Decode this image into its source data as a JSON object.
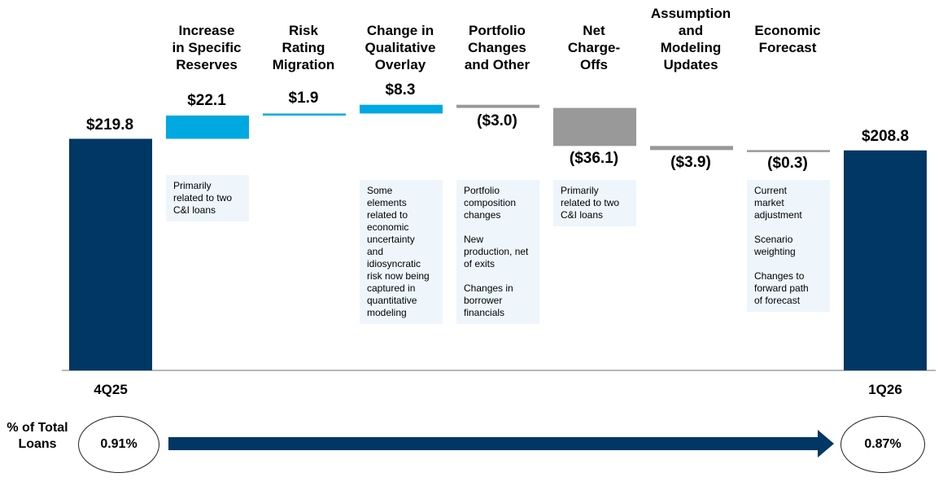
{
  "chart_data": {
    "type": "waterfall",
    "start": {
      "label": "4Q25",
      "value": 219.8,
      "value_label": "$219.8"
    },
    "end": {
      "label": "1Q26",
      "value": 208.8,
      "value_label": "$208.8"
    },
    "steps": [
      {
        "header": "Increase\nin Specific\nReserves",
        "value": 22.1,
        "value_label": "$22.1",
        "note": "Primarily\nrelated to two\nC&I loans"
      },
      {
        "header": "Risk\nRating\nMigration",
        "value": 1.9,
        "value_label": "$1.9",
        "note": ""
      },
      {
        "header": "Change in\nQualitative\nOverlay",
        "value": 8.3,
        "value_label": "$8.3",
        "note": "Some\nelements\nrelated to\neconomic\nuncertainty\nand\nidiosyncratic\nrisk now being\ncaptured in\nquantitative\nmodeling"
      },
      {
        "header": "Portfolio\nChanges\nand Other",
        "value": -3.0,
        "value_label": "($3.0)",
        "note": "Portfolio\ncomposition\nchanges\n\nNew\nproduction, net\nof exits\n\nChanges in\nborrower\nfinancials"
      },
      {
        "header": "Net\nCharge-\nOffs",
        "value": -36.1,
        "value_label": "($36.1)",
        "note": "Primarily\nrelated to two\nC&I loans"
      },
      {
        "header": "Assumption\nand\nModeling\nUpdates",
        "value": -3.9,
        "value_label": "($3.9)",
        "note": ""
      },
      {
        "header": "Economic\nForecast",
        "value": -0.3,
        "value_label": "($0.3)",
        "note": "Current\nmarket\nadjustment\n\nScenario\nweighting\n\nChanges to\nforward path\nof forecast"
      }
    ],
    "colors": {
      "total": "#003764",
      "increase": "#00a8e1",
      "decrease": "#999999"
    }
  },
  "pct_row": {
    "label": "% of Total\nLoans",
    "start_value": "0.91%",
    "end_value": "0.87%",
    "arrow_color": "#003764"
  }
}
